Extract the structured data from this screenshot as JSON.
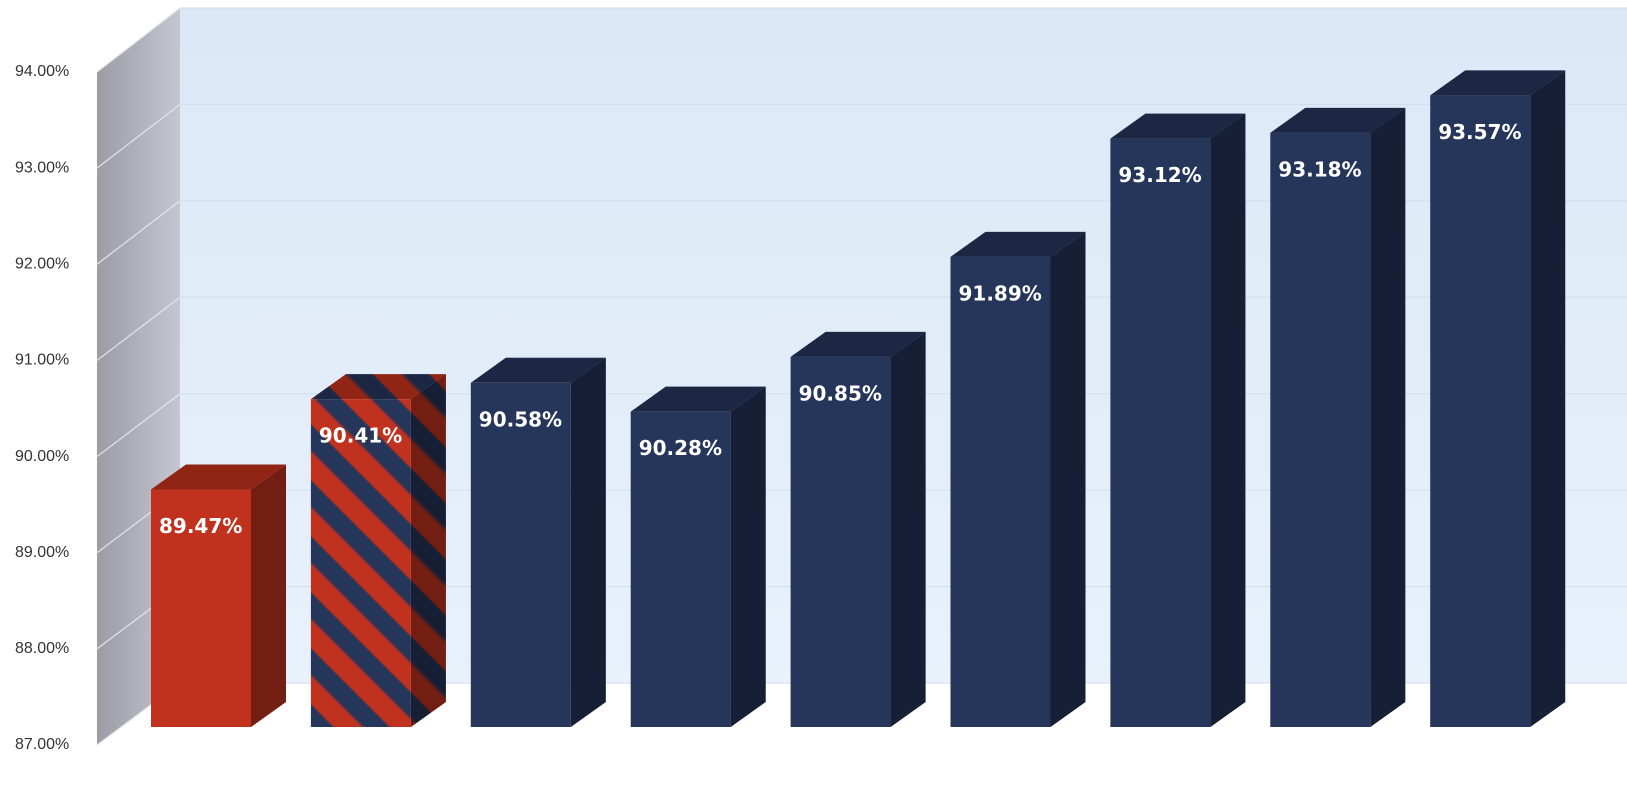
{
  "chart_data": {
    "type": "bar3d",
    "categories": [
      null,
      null,
      null,
      null,
      null,
      null,
      null,
      null,
      null
    ],
    "values": [
      89.47,
      90.41,
      90.58,
      90.28,
      90.85,
      91.89,
      93.12,
      93.18,
      93.57
    ],
    "value_labels": [
      "89.47%",
      "90.41%",
      "90.58%",
      "90.28%",
      "90.85%",
      "91.89%",
      "93.12%",
      "93.18%",
      "93.57%"
    ],
    "colors": [
      "#c0321e",
      [
        "#c0321e",
        "#26355a"
      ],
      "#26355a",
      "#26355a",
      "#26355a",
      "#26355a",
      "#26355a",
      "#26355a",
      "#26355a"
    ],
    "ylim": [
      87,
      94
    ],
    "yticks": [
      {
        "value": 87,
        "label": "87.00%"
      },
      {
        "value": 88,
        "label": "88.00%"
      },
      {
        "value": 89,
        "label": "89.00%"
      },
      {
        "value": 90,
        "label": "90.00%"
      },
      {
        "value": 91,
        "label": "91.00%"
      },
      {
        "value": 92,
        "label": "92.00%"
      },
      {
        "value": 93,
        "label": "93.00%"
      },
      {
        "value": 94,
        "label": "94.00%"
      }
    ],
    "grid": true
  }
}
